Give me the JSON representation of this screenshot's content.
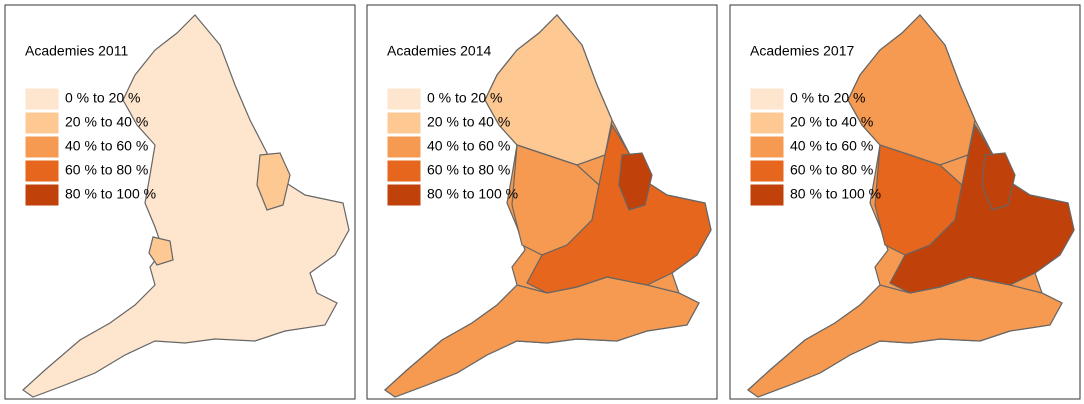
{
  "panels": [
    {
      "title": "Academies 2011"
    },
    {
      "title": "Academies 2014"
    },
    {
      "title": "Academies 2017"
    }
  ],
  "legend": [
    {
      "label": "0 % to 20 %",
      "color": "#fee6ce"
    },
    {
      "label": "20 % to 40 %",
      "color": "#fdc892"
    },
    {
      "label": "40 % to 60 %",
      "color": "#f59a50"
    },
    {
      "label": "60 % to 80 %",
      "color": "#e5661c"
    },
    {
      "label": "80 % to 100 %",
      "color": "#c0420a"
    }
  ]
}
